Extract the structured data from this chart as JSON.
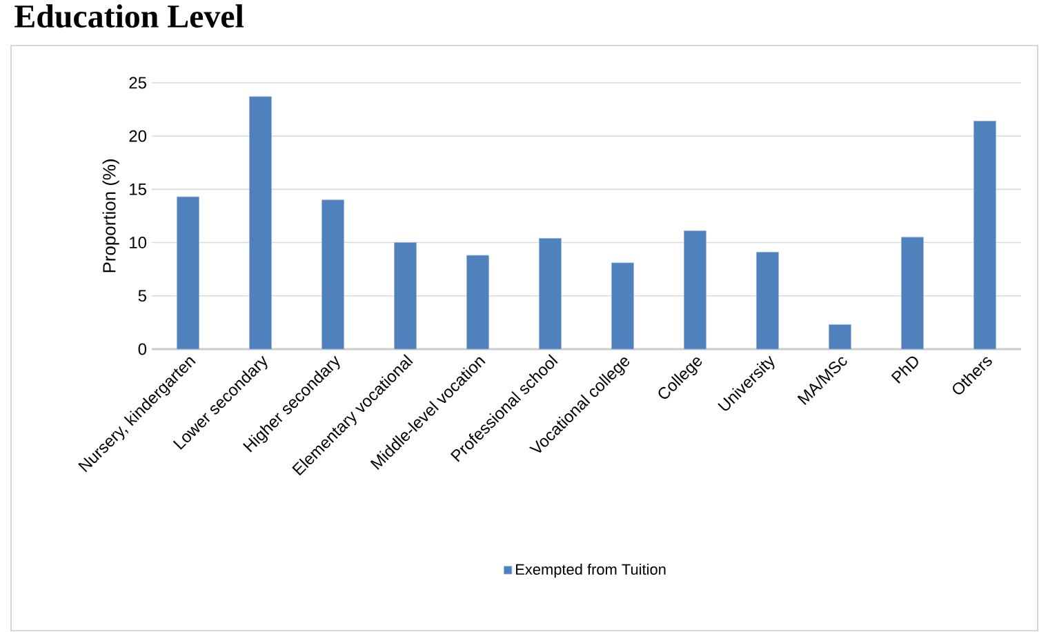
{
  "chart_data": {
    "type": "bar",
    "title": "Education Level",
    "ylabel": "Proportion (%)",
    "categories": [
      "Nursery, kindergarten",
      "Lower secondary",
      "Higher secondary",
      "Elementary vocational",
      "Middle-level vocation",
      "Professional school",
      "Vocational college",
      "College",
      "University",
      "MA/MSc",
      "PhD",
      "Others"
    ],
    "series": [
      {
        "name": "Exempted from Tuition",
        "color": "#4f81bd",
        "values": [
          14.3,
          23.7,
          14.0,
          10.0,
          8.8,
          10.4,
          8.1,
          11.1,
          9.1,
          2.3,
          10.5,
          21.4
        ]
      }
    ],
    "ylim": [
      0,
      25
    ],
    "yticks": [
      0,
      5,
      10,
      15,
      20,
      25
    ],
    "grid": "y",
    "legend": "bottom"
  }
}
